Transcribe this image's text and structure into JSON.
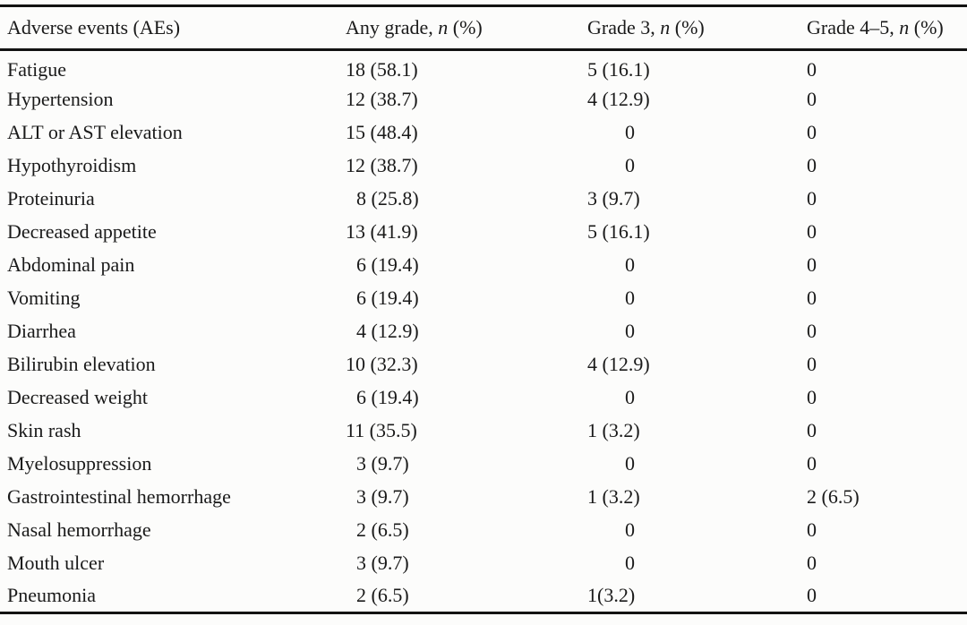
{
  "table": {
    "headers": [
      {
        "label": "Adverse events (AEs)"
      },
      {
        "pre": "Any grade, ",
        "italic": "n",
        "post": " (%)"
      },
      {
        "pre": "Grade 3, ",
        "italic": "n",
        "post": " (%)"
      },
      {
        "pre": "Grade 4–5, ",
        "italic": "n",
        "post": " (%)"
      }
    ],
    "rows": [
      {
        "event": "Fatigue",
        "any_grade": "18 (58.1)",
        "grade3": "5 (16.1)",
        "grade4_5": "0"
      },
      {
        "event": "Hypertension",
        "any_grade": "12 (38.7)",
        "grade3": "4 (12.9)",
        "grade4_5": "0"
      },
      {
        "event": "ALT or AST elevation",
        "any_grade": "15 (48.4)",
        "grade3": "0",
        "grade4_5": "0"
      },
      {
        "event": "Hypothyroidism",
        "any_grade": "12 (38.7)",
        "grade3": "0",
        "grade4_5": "0"
      },
      {
        "event": "Proteinuria",
        "any_grade": "8 (25.8)",
        "grade3": "3 (9.7)",
        "grade4_5": "0"
      },
      {
        "event": "Decreased appetite",
        "any_grade": "13 (41.9)",
        "grade3": "5 (16.1)",
        "grade4_5": "0"
      },
      {
        "event": "Abdominal pain",
        "any_grade": "6 (19.4)",
        "grade3": "0",
        "grade4_5": "0"
      },
      {
        "event": "Vomiting",
        "any_grade": "6 (19.4)",
        "grade3": "0",
        "grade4_5": "0"
      },
      {
        "event": "Diarrhea",
        "any_grade": "4 (12.9)",
        "grade3": "0",
        "grade4_5": "0"
      },
      {
        "event": "Bilirubin elevation",
        "any_grade": "10 (32.3)",
        "grade3": "4 (12.9)",
        "grade4_5": "0"
      },
      {
        "event": "Decreased weight",
        "any_grade": "6 (19.4)",
        "grade3": "0",
        "grade4_5": "0"
      },
      {
        "event": "Skin rash",
        "any_grade": "11 (35.5)",
        "grade3": "1 (3.2)",
        "grade4_5": "0"
      },
      {
        "event": "Myelosuppression",
        "any_grade": "3 (9.7)",
        "grade3": "0",
        "grade4_5": "0"
      },
      {
        "event": "Gastrointestinal hemorrhage",
        "any_grade": "3 (9.7)",
        "grade3": "1 (3.2)",
        "grade4_5": "2 (6.5)"
      },
      {
        "event": "Nasal hemorrhage",
        "any_grade": "2 (6.5)",
        "grade3": "0",
        "grade4_5": "0"
      },
      {
        "event": "Mouth ulcer",
        "any_grade": "3 (9.7)",
        "grade3": "0",
        "grade4_5": "0"
      },
      {
        "event": "Pneumonia",
        "any_grade": "2 (6.5)",
        "grade3": "1(3.2)",
        "grade4_5": "0"
      }
    ]
  }
}
